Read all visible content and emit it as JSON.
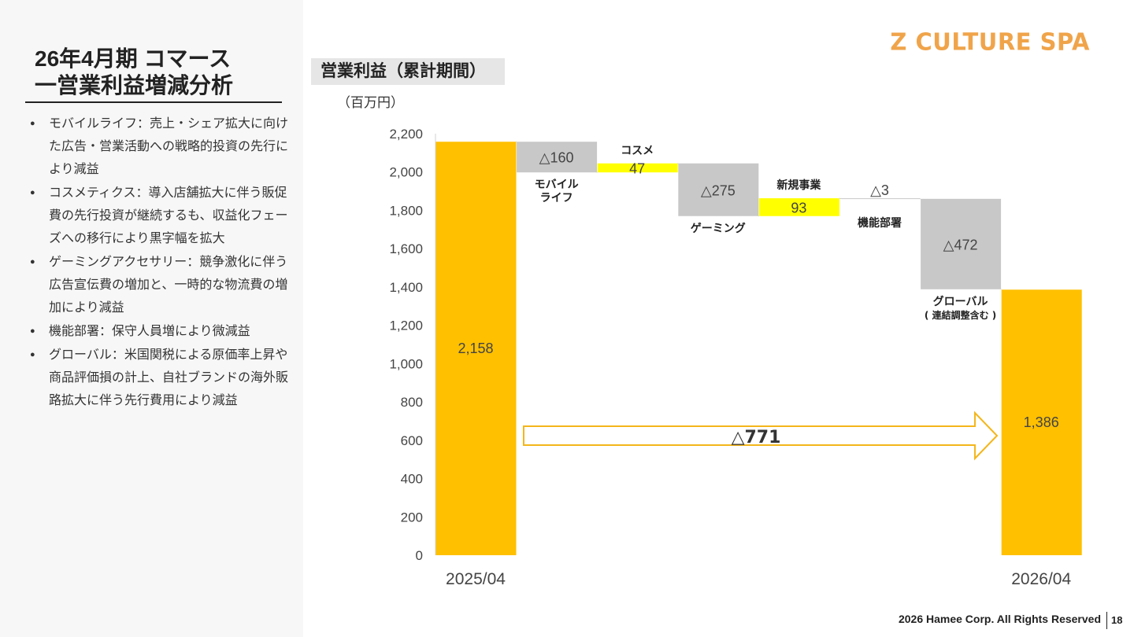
{
  "title_lines": [
    "26年4月期 コマース",
    "一営業利益増減分析"
  ],
  "bullets": [
    "モバイルライフ：売上・シェア拡大に向けた広告・営業活動への戦略的投資の先行により減益",
    "コスメティクス：導入店舗拡大に伴う販促費の先行投資が継続するも、収益化フェーズへの移行により黒字幅を拡大",
    "ゲーミングアクセサリー：競争激化に伴う広告宣伝費の増加と、一時的な物流費の増加により減益",
    "機能部署：保守人員増により微減益",
    "グローバル：米国関税による原価率上昇や商品評価損の計上、自社ブランドの海外販路拡大に伴う先行費用により減益"
  ],
  "brand": "Z CULTURE SPA",
  "section_label": "営業利益（累計期間）",
  "unit_label": "（百万円）",
  "footer": "2026 Hamee Corp. All Rights Reserved",
  "page_number": "18",
  "colors": {
    "total": "#FFC000",
    "decrease": "#C8C8C8",
    "increase": "#FFFF00",
    "arrow": "#F4B61A",
    "brand": "#F0A44A"
  },
  "chart_data": {
    "type": "bar",
    "subtype": "waterfall",
    "ylim": [
      0,
      2200
    ],
    "yticks": [
      "0",
      "200",
      "400",
      "600",
      "800",
      "1,000",
      "1,200",
      "1,400",
      "1,600",
      "1,800",
      "2,000",
      "2,200"
    ],
    "steps": [
      {
        "kind": "total",
        "value": 2158,
        "value_label": "2,158",
        "category": "2025/04",
        "caption": []
      },
      {
        "kind": "decrease",
        "value": -160,
        "value_label": "△160",
        "category": "",
        "caption": [
          "モバイル",
          "ライフ"
        ]
      },
      {
        "kind": "increase",
        "value": 47,
        "value_label": "47",
        "category": "",
        "caption": [
          "コスメ"
        ]
      },
      {
        "kind": "decrease",
        "value": -275,
        "value_label": "△275",
        "category": "",
        "caption": [
          "ゲーミング"
        ]
      },
      {
        "kind": "increase",
        "value": 93,
        "value_label": "93",
        "category": "",
        "caption": [
          "新規事業"
        ]
      },
      {
        "kind": "decrease",
        "value": -3,
        "value_label": "△3",
        "category": "",
        "caption": [
          "機能部署"
        ]
      },
      {
        "kind": "decrease",
        "value": -472,
        "value_label": "△472",
        "category": "",
        "caption": [
          "グローバル",
          "( 連結調整含む )"
        ]
      },
      {
        "kind": "total",
        "value": 1386,
        "value_label": "1,386",
        "category": "2026/04",
        "caption": []
      }
    ],
    "net_change_label": "△771"
  }
}
